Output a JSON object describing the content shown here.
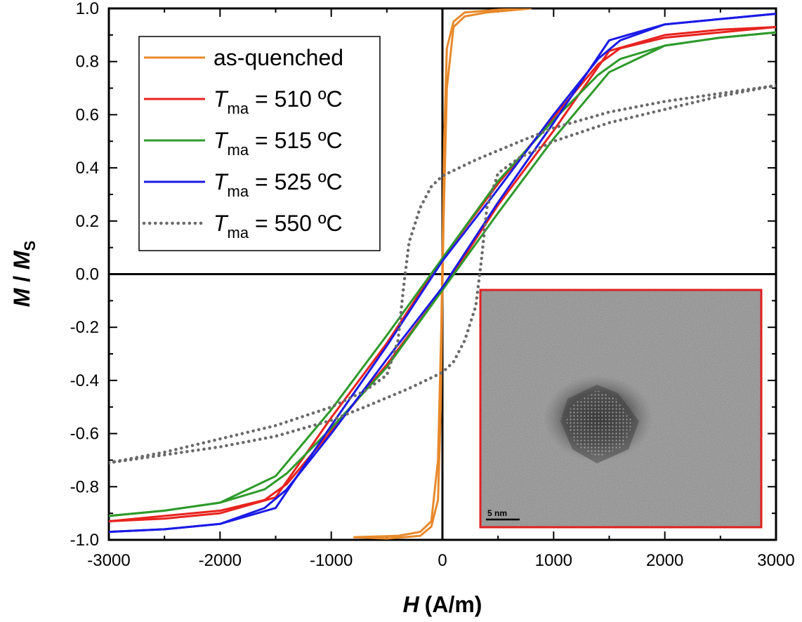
{
  "chart_data": {
    "type": "line",
    "xlabel": {
      "var": "H",
      "unit": "(A/m)"
    },
    "ylabel": {
      "var": "M",
      "sep": " / ",
      "var2": "M",
      "sub": "S"
    },
    "xlim": [
      -3000,
      3000
    ],
    "ylim": [
      -1.0,
      1.0
    ],
    "x_ticks": [
      -3000,
      -2000,
      -1000,
      0,
      1000,
      2000,
      3000
    ],
    "x_tick_labels": [
      "-3000",
      "-2000",
      "-1000",
      "0",
      "1000",
      "2000",
      "3000"
    ],
    "y_ticks": [
      -1.0,
      -0.8,
      -0.6,
      -0.4,
      -0.2,
      0.0,
      0.2,
      0.4,
      0.6,
      0.8,
      1.0
    ],
    "y_tick_labels": [
      "-1.0",
      "-0.8",
      "-0.6",
      "-0.4",
      "-0.2",
      "0.0",
      "0.2",
      "0.4",
      "0.6",
      "0.8",
      "1.0"
    ],
    "grid": false,
    "legend_position": "top-left",
    "legend": [
      {
        "text": "as-quenched",
        "T": "",
        "sub": "",
        "rest": "",
        "color": "#e8892b",
        "dash": ""
      },
      {
        "text": "",
        "T": "T",
        "sub": "ma",
        "rest": " = 510 ºC",
        "color": "#e8231f",
        "dash": ""
      },
      {
        "text": "",
        "T": "T",
        "sub": "ma",
        "rest": " = 515 ºC",
        "color": "#2e9a2a",
        "dash": ""
      },
      {
        "text": "",
        "T": "T",
        "sub": "ma",
        "rest": " = 525 ºC",
        "color": "#1a1ae6",
        "dash": ""
      },
      {
        "text": "",
        "T": "T",
        "sub": "ma",
        "rest": " = 550 ºC",
        "color": "#6a6a6a",
        "dash": "dot"
      }
    ],
    "series": [
      {
        "name": "as-quenched",
        "color": "#e8892b",
        "dash": "",
        "upper": [
          [
            -800,
            -0.99
          ],
          [
            -400,
            -0.985
          ],
          [
            -200,
            -0.97
          ],
          [
            -100,
            -0.93
          ],
          [
            -40,
            -0.7
          ],
          [
            -10,
            -0.2
          ],
          [
            0,
            0.05
          ],
          [
            15,
            0.5
          ],
          [
            40,
            0.85
          ],
          [
            100,
            0.95
          ],
          [
            200,
            0.985
          ],
          [
            500,
            0.995
          ],
          [
            800,
            1.0
          ]
        ],
        "lower": [
          [
            800,
            1.0
          ],
          [
            400,
            0.985
          ],
          [
            200,
            0.97
          ],
          [
            100,
            0.93
          ],
          [
            40,
            0.7
          ],
          [
            10,
            0.2
          ],
          [
            0,
            -0.05
          ],
          [
            -15,
            -0.5
          ],
          [
            -40,
            -0.85
          ],
          [
            -100,
            -0.95
          ],
          [
            -200,
            -0.985
          ],
          [
            -500,
            -0.995
          ],
          [
            -800,
            -0.99
          ]
        ]
      },
      {
        "name": "T_ma = 510 ºC",
        "color": "#e8231f",
        "dash": "",
        "upper": [
          [
            -3000,
            -0.93
          ],
          [
            -2500,
            -0.91
          ],
          [
            -2000,
            -0.89
          ],
          [
            -1600,
            -0.85
          ],
          [
            -1400,
            -0.79
          ],
          [
            -1000,
            -0.59
          ],
          [
            -500,
            -0.34
          ],
          [
            0,
            -0.06
          ],
          [
            500,
            0.26
          ],
          [
            1000,
            0.54
          ],
          [
            1500,
            0.84
          ],
          [
            2000,
            0.9
          ],
          [
            2500,
            0.92
          ],
          [
            3000,
            0.93
          ]
        ],
        "lower": [
          [
            3000,
            0.93
          ],
          [
            2500,
            0.91
          ],
          [
            2000,
            0.89
          ],
          [
            1600,
            0.85
          ],
          [
            1400,
            0.79
          ],
          [
            1000,
            0.59
          ],
          [
            500,
            0.34
          ],
          [
            0,
            0.06
          ],
          [
            -500,
            -0.26
          ],
          [
            -1000,
            -0.54
          ],
          [
            -1500,
            -0.84
          ],
          [
            -2000,
            -0.9
          ],
          [
            -2500,
            -0.92
          ],
          [
            -3000,
            -0.93
          ]
        ]
      },
      {
        "name": "T_ma = 515 ºC",
        "color": "#2e9a2a",
        "dash": "",
        "upper": [
          [
            -3000,
            -0.91
          ],
          [
            -2500,
            -0.89
          ],
          [
            -2000,
            -0.86
          ],
          [
            -1600,
            -0.81
          ],
          [
            -1400,
            -0.75
          ],
          [
            -1000,
            -0.58
          ],
          [
            -500,
            -0.35
          ],
          [
            0,
            -0.06
          ],
          [
            500,
            0.23
          ],
          [
            1000,
            0.51
          ],
          [
            1500,
            0.76
          ],
          [
            2000,
            0.86
          ],
          [
            2500,
            0.89
          ],
          [
            3000,
            0.91
          ]
        ],
        "lower": [
          [
            3000,
            0.91
          ],
          [
            2500,
            0.89
          ],
          [
            2000,
            0.86
          ],
          [
            1600,
            0.81
          ],
          [
            1400,
            0.75
          ],
          [
            1000,
            0.58
          ],
          [
            500,
            0.35
          ],
          [
            0,
            0.06
          ],
          [
            -500,
            -0.23
          ],
          [
            -1000,
            -0.51
          ],
          [
            -1500,
            -0.76
          ],
          [
            -2000,
            -0.86
          ],
          [
            -2500,
            -0.89
          ],
          [
            -3000,
            -0.91
          ]
        ]
      },
      {
        "name": "T_ma = 525 ºC",
        "color": "#1a1ae6",
        "dash": "",
        "upper": [
          [
            -3000,
            -0.97
          ],
          [
            -2500,
            -0.96
          ],
          [
            -2000,
            -0.94
          ],
          [
            -1600,
            -0.88
          ],
          [
            -1400,
            -0.81
          ],
          [
            -1000,
            -0.6
          ],
          [
            -500,
            -0.32
          ],
          [
            0,
            -0.05
          ],
          [
            500,
            0.27
          ],
          [
            1000,
            0.57
          ],
          [
            1500,
            0.88
          ],
          [
            2000,
            0.94
          ],
          [
            2500,
            0.96
          ],
          [
            3000,
            0.98
          ]
        ],
        "lower": [
          [
            3000,
            0.98
          ],
          [
            2500,
            0.96
          ],
          [
            2000,
            0.94
          ],
          [
            1600,
            0.88
          ],
          [
            1400,
            0.81
          ],
          [
            1000,
            0.6
          ],
          [
            500,
            0.32
          ],
          [
            0,
            0.05
          ],
          [
            -500,
            -0.27
          ],
          [
            -1000,
            -0.57
          ],
          [
            -1500,
            -0.88
          ],
          [
            -2000,
            -0.94
          ],
          [
            -2500,
            -0.96
          ],
          [
            -3000,
            -0.97
          ]
        ]
      },
      {
        "name": "T_ma = 550 ºC",
        "color": "#6a6a6a",
        "dash": "dot",
        "upper": [
          [
            -3000,
            -0.71
          ],
          [
            -2500,
            -0.67
          ],
          [
            -2000,
            -0.62
          ],
          [
            -1500,
            -0.57
          ],
          [
            -1000,
            -0.5
          ],
          [
            -700,
            -0.44
          ],
          [
            -500,
            -0.38
          ],
          [
            -400,
            -0.25
          ],
          [
            -350,
            -0.05
          ],
          [
            -300,
            0.12
          ],
          [
            -200,
            0.25
          ],
          [
            -100,
            0.33
          ],
          [
            0,
            0.37
          ],
          [
            300,
            0.43
          ],
          [
            700,
            0.5
          ],
          [
            1000,
            0.55
          ],
          [
            1500,
            0.61
          ],
          [
            2000,
            0.65
          ],
          [
            2500,
            0.68
          ],
          [
            3000,
            0.71
          ]
        ],
        "lower": [
          [
            3000,
            0.71
          ],
          [
            2500,
            0.67
          ],
          [
            2000,
            0.62
          ],
          [
            1500,
            0.57
          ],
          [
            1000,
            0.5
          ],
          [
            700,
            0.44
          ],
          [
            500,
            0.38
          ],
          [
            400,
            0.25
          ],
          [
            350,
            0.05
          ],
          [
            300,
            -0.12
          ],
          [
            200,
            -0.25
          ],
          [
            100,
            -0.33
          ],
          [
            0,
            -0.37
          ],
          [
            -300,
            -0.43
          ],
          [
            -700,
            -0.5
          ],
          [
            -1000,
            -0.55
          ],
          [
            -1500,
            -0.61
          ],
          [
            -2000,
            -0.65
          ],
          [
            -2500,
            -0.68
          ],
          [
            -3000,
            -0.71
          ]
        ]
      }
    ],
    "inset": {
      "scale_bar_label": "5 nm",
      "border_color": "#e02020"
    }
  }
}
